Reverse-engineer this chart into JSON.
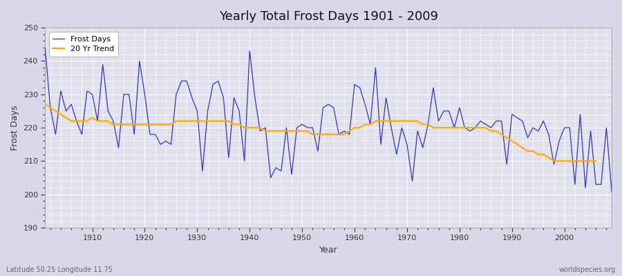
{
  "title": "Yearly Total Frost Days 1901 - 2009",
  "xlabel": "Year",
  "ylabel": "Frost Days",
  "lat_lon_label": "Latitude 50.25 Longitude 11.75",
  "watermark": "worldspecies.org",
  "ylim": [
    190,
    250
  ],
  "xlim": [
    1901,
    2009
  ],
  "bg_fig": "#d8d8e8",
  "bg_ax": "#e0e0ec",
  "grid_major_color": "#ffffff",
  "grid_minor_color": "#ffffff",
  "line_color": "#3333bb",
  "trend_color": "#ffaa00",
  "years": [
    1901,
    1902,
    1903,
    1904,
    1905,
    1906,
    1907,
    1908,
    1909,
    1910,
    1911,
    1912,
    1913,
    1914,
    1915,
    1916,
    1917,
    1918,
    1919,
    1920,
    1921,
    1922,
    1923,
    1924,
    1925,
    1926,
    1927,
    1928,
    1929,
    1930,
    1931,
    1932,
    1933,
    1934,
    1935,
    1936,
    1937,
    1938,
    1939,
    1940,
    1941,
    1942,
    1943,
    1944,
    1945,
    1946,
    1947,
    1948,
    1949,
    1950,
    1951,
    1952,
    1953,
    1954,
    1955,
    1956,
    1957,
    1958,
    1959,
    1960,
    1961,
    1962,
    1963,
    1964,
    1965,
    1966,
    1967,
    1968,
    1969,
    1970,
    1971,
    1972,
    1973,
    1974,
    1975,
    1976,
    1977,
    1978,
    1979,
    1980,
    1981,
    1982,
    1983,
    1984,
    1985,
    1986,
    1987,
    1988,
    1989,
    1990,
    1991,
    1992,
    1993,
    1994,
    1995,
    1996,
    1997,
    1998,
    1999,
    2000,
    2001,
    2002,
    2003,
    2004,
    2005,
    2006,
    2007,
    2008,
    2009
  ],
  "frost_days": [
    244,
    226,
    218,
    231,
    225,
    227,
    222,
    218,
    231,
    230,
    222,
    239,
    225,
    222,
    214,
    230,
    230,
    218,
    240,
    230,
    218,
    218,
    215,
    216,
    215,
    230,
    234,
    234,
    229,
    225,
    207,
    225,
    233,
    234,
    229,
    211,
    229,
    225,
    210,
    243,
    229,
    219,
    220,
    205,
    208,
    207,
    220,
    206,
    220,
    221,
    220,
    220,
    213,
    226,
    227,
    226,
    218,
    219,
    218,
    233,
    232,
    227,
    221,
    238,
    215,
    229,
    220,
    212,
    220,
    215,
    204,
    219,
    214,
    221,
    232,
    222,
    225,
    225,
    220,
    226,
    220,
    219,
    220,
    222,
    221,
    220,
    222,
    222,
    209,
    224,
    223,
    222,
    217,
    220,
    219,
    222,
    218,
    209,
    216,
    220,
    220,
    203,
    224,
    202,
    219,
    203,
    203,
    220,
    201
  ],
  "trend": [
    227,
    226,
    225,
    224,
    223,
    222,
    222,
    222,
    222,
    223,
    222,
    222,
    222,
    221,
    221,
    221,
    221,
    221,
    221,
    221,
    221,
    221,
    221,
    221,
    221,
    222,
    222,
    222,
    222,
    222,
    222,
    222,
    222,
    222,
    222,
    222,
    221,
    221,
    220,
    220,
    220,
    220,
    219,
    219,
    219,
    219,
    219,
    219,
    219,
    219,
    219,
    218,
    218,
    218,
    218,
    218,
    218,
    218,
    219,
    220,
    220,
    221,
    221,
    222,
    222,
    222,
    222,
    222,
    222,
    222,
    222,
    222,
    221,
    221,
    220,
    220,
    220,
    220,
    220,
    220,
    220,
    220,
    220,
    220,
    220,
    219,
    219,
    218,
    217,
    216,
    215,
    214,
    213,
    213,
    212,
    212,
    211,
    210,
    210,
    210,
    210,
    210,
    210,
    210,
    210,
    210,
    null,
    null,
    null
  ]
}
